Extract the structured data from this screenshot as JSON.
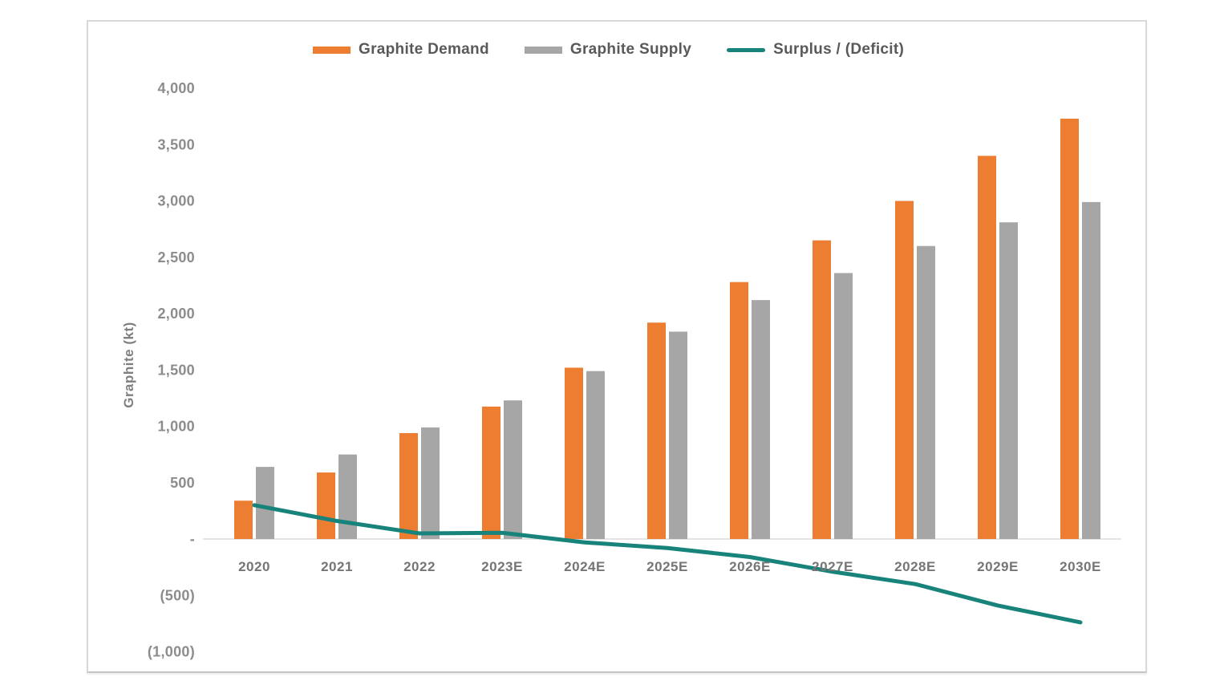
{
  "chart_data": {
    "type": "bar",
    "categories": [
      "2020",
      "2021",
      "2022",
      "2023E",
      "2024E",
      "2025E",
      "2026E",
      "2027E",
      "2028E",
      "2029E",
      "2030E"
    ],
    "series": [
      {
        "name": "Graphite Demand",
        "type": "bar",
        "color": "#ED7D31",
        "values": [
          340,
          590,
          940,
          1175,
          1520,
          1920,
          2280,
          2650,
          3000,
          3400,
          3730
        ]
      },
      {
        "name": "Graphite Supply",
        "type": "bar",
        "color": "#A6A6A6",
        "values": [
          640,
          750,
          990,
          1230,
          1490,
          1840,
          2120,
          2360,
          2600,
          2810,
          2990
        ]
      },
      {
        "name": "Surplus / (Deficit)",
        "type": "line",
        "color": "#17837A",
        "values": [
          300,
          160,
          50,
          55,
          -30,
          -80,
          -160,
          -290,
          -400,
          -590,
          -740
        ]
      }
    ],
    "xlabel": "",
    "ylabel": "Graphite (kt)",
    "ylim": [
      -1000,
      4000
    ],
    "yticks": [
      {
        "value": 4000,
        "label": "4,000"
      },
      {
        "value": 3500,
        "label": "3,500"
      },
      {
        "value": 3000,
        "label": "3,000"
      },
      {
        "value": 2500,
        "label": "2,500"
      },
      {
        "value": 2000,
        "label": "2,000"
      },
      {
        "value": 1500,
        "label": "1,500"
      },
      {
        "value": 1000,
        "label": "1,000"
      },
      {
        "value": 500,
        "label": "500"
      },
      {
        "value": 0,
        "label": "-"
      },
      {
        "value": -500,
        "label": "(500)"
      },
      {
        "value": -1000,
        "label": "(1,000)"
      }
    ],
    "grid": false,
    "legend_position": "top"
  }
}
